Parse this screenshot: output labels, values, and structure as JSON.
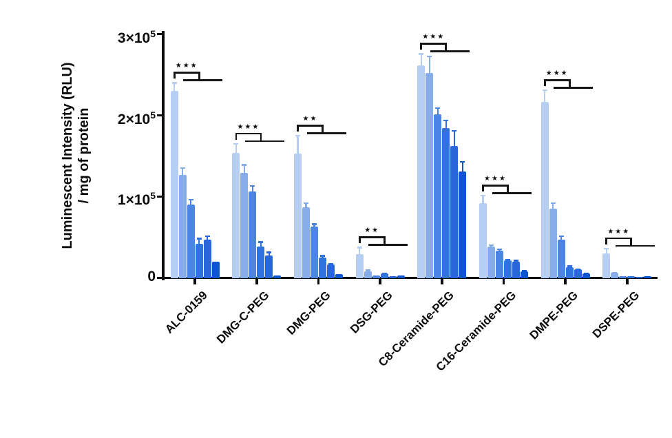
{
  "chart_data": {
    "type": "bar",
    "title": "",
    "ylabel_line1": "Luminescent Intensity (RLU)",
    "ylabel_line2": "/ mg of protein",
    "xlabel": "",
    "ylim": [
      0,
      300000
    ],
    "grid": false,
    "legend": null,
    "axis_color": "#0d0d0d",
    "bar_colors": [
      "#b6cef1",
      "#87ade9",
      "#4c85e3",
      "#3173de",
      "#2767db",
      "#0e55d0"
    ],
    "yticks": [
      {
        "value": 0,
        "base": "0",
        "sup": ""
      },
      {
        "value": 100000,
        "base": "1×10",
        "sup": "5"
      },
      {
        "value": 200000,
        "base": "2×10",
        "sup": "5"
      },
      {
        "value": 300000,
        "base": "3×10",
        "sup": "5"
      }
    ],
    "series_note": "6 bars per lipid group, light-to-dark blue; whisker error bars; stepped significance bracket comparing bar 1 vs the rest",
    "groups": [
      {
        "label": "ALC-0159",
        "significance": "***",
        "values": [
          230000,
          127000,
          90000,
          42000,
          47000,
          20000
        ],
        "errors": [
          11000,
          9000,
          7000,
          7000,
          5000,
          0
        ]
      },
      {
        "label": "DMG-C-PEG",
        "significance": "***",
        "values": [
          154000,
          129000,
          106000,
          38000,
          27000,
          3000
        ],
        "errors": [
          12000,
          11000,
          8000,
          7000,
          5000,
          0
        ]
      },
      {
        "label": "DMG-PEG",
        "significance": "**",
        "values": [
          153000,
          87000,
          63000,
          25000,
          16000,
          4000
        ],
        "errors": [
          23000,
          6000,
          4000,
          3000,
          2000,
          0
        ]
      },
      {
        "label": "DSG-PEG",
        "significance": "**",
        "values": [
          29000,
          8000,
          3000,
          5000,
          2000,
          3000
        ],
        "errors": [
          9000,
          2000,
          0,
          1000,
          0,
          0
        ]
      },
      {
        "label": "C8-Ceramide-PEG",
        "significance": "***",
        "values": [
          262000,
          252000,
          201000,
          184000,
          162000,
          131000
        ],
        "errors": [
          15000,
          22000,
          9000,
          11000,
          20000,
          13000
        ]
      },
      {
        "label": "C16-Ceramide-PEG",
        "significance": "***",
        "values": [
          92000,
          38000,
          33000,
          21000,
          20000,
          8000
        ],
        "errors": [
          10000,
          3000,
          3000,
          2000,
          2000,
          1000
        ]
      },
      {
        "label": "DMPE-PEG",
        "significance": "***",
        "values": [
          217000,
          85000,
          47000,
          13000,
          10000,
          5000
        ],
        "errors": [
          15000,
          8000,
          5000,
          2000,
          1000,
          1000
        ]
      },
      {
        "label": "DSPE-PEG",
        "significance": "***",
        "values": [
          30000,
          6000,
          2000,
          2000,
          1000,
          2000
        ],
        "errors": [
          7000,
          1000,
          0,
          0,
          0,
          0
        ]
      }
    ]
  }
}
